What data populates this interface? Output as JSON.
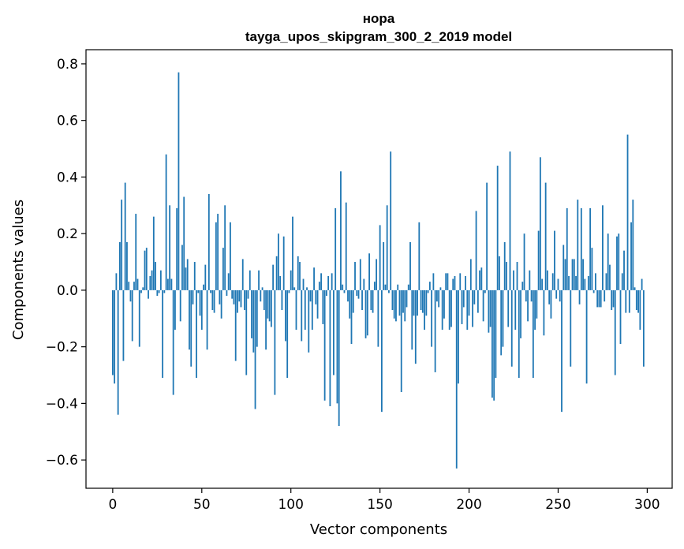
{
  "chart_data": {
    "type": "bar",
    "title": "нора",
    "subtitle": "tayga_upos_skipgram_300_2_2019 model",
    "xlabel": "Vector components",
    "ylabel": "Components values",
    "xlim": [
      -15,
      314
    ],
    "ylim": [
      -0.7,
      0.85
    ],
    "xticks": [
      0,
      50,
      100,
      150,
      200,
      250,
      300
    ],
    "yticks": [
      0.8,
      0.6,
      0.4,
      0.2,
      0.0,
      -0.2,
      -0.4,
      -0.6
    ],
    "ytick_labels": [
      "0.8",
      "0.6",
      "0.4",
      "0.2",
      "0.0",
      "−0.2",
      "−0.4",
      "−0.6"
    ],
    "grid": false,
    "bar_color": "#1f77b4",
    "values": [
      -0.3,
      -0.33,
      0.06,
      -0.44,
      0.17,
      0.32,
      -0.25,
      0.38,
      0.17,
      0.03,
      -0.04,
      -0.18,
      0.03,
      0.27,
      0.04,
      -0.2,
      -0.01,
      0.01,
      0.14,
      0.15,
      -0.03,
      0.05,
      0.07,
      0.26,
      0.1,
      -0.02,
      -0.01,
      0.07,
      -0.31,
      -0.01,
      0.48,
      0.04,
      0.3,
      0.04,
      -0.37,
      -0.14,
      0.29,
      0.77,
      -0.11,
      0.16,
      0.33,
      0.08,
      0.11,
      -0.21,
      -0.27,
      -0.05,
      0.1,
      -0.31,
      -0.01,
      -0.09,
      -0.14,
      0.02,
      0.09,
      -0.21,
      0.34,
      -0.01,
      -0.07,
      -0.08,
      0.24,
      0.27,
      -0.05,
      -0.1,
      0.15,
      0.3,
      -0.02,
      0.06,
      0.24,
      -0.03,
      -0.05,
      -0.25,
      -0.08,
      -0.04,
      -0.06,
      0.11,
      -0.07,
      -0.3,
      -0.03,
      0.07,
      -0.17,
      -0.22,
      -0.42,
      -0.2,
      0.07,
      -0.04,
      0.01,
      -0.07,
      -0.21,
      -0.1,
      -0.11,
      -0.13,
      0.09,
      -0.37,
      0.12,
      0.2,
      0.05,
      -0.07,
      0.19,
      -0.18,
      -0.31,
      -0.01,
      0.07,
      0.26,
      0.01,
      -0.14,
      0.12,
      0.1,
      -0.18,
      0.04,
      -0.14,
      0.01,
      -0.22,
      -0.04,
      -0.14,
      0.08,
      -0.05,
      -0.1,
      0.03,
      0.06,
      -0.12,
      -0.39,
      -0.02,
      0.05,
      -0.41,
      0.06,
      -0.3,
      0.29,
      -0.4,
      -0.48,
      0.42,
      0.02,
      -0.01,
      0.31,
      -0.04,
      -0.1,
      -0.19,
      -0.08,
      0.1,
      -0.02,
      -0.03,
      0.11,
      -0.07,
      0.04,
      -0.17,
      -0.16,
      0.13,
      -0.07,
      -0.08,
      0.03,
      0.11,
      -0.2,
      0.23,
      -0.43,
      0.17,
      0.02,
      0.3,
      -0.01,
      0.49,
      -0.07,
      -0.1,
      -0.11,
      0.02,
      -0.09,
      -0.36,
      -0.08,
      -0.11,
      -0.06,
      0.02,
      0.17,
      -0.21,
      -0.09,
      -0.26,
      -0.09,
      0.24,
      -0.07,
      -0.08,
      -0.14,
      -0.09,
      -0.01,
      0.03,
      -0.2,
      0.06,
      -0.29,
      -0.04,
      -0.06,
      0.01,
      -0.14,
      -0.1,
      0.06,
      0.06,
      -0.14,
      -0.13,
      0.04,
      0.05,
      -0.63,
      -0.33,
      0.06,
      -0.12,
      -0.06,
      0.05,
      -0.14,
      -0.09,
      0.11,
      -0.13,
      -0.05,
      0.28,
      -0.08,
      0.07,
      0.08,
      -0.11,
      -0.01,
      0.38,
      -0.15,
      -0.13,
      -0.38,
      -0.39,
      -0.31,
      0.44,
      0.12,
      -0.23,
      -0.2,
      0.17,
      0.1,
      -0.13,
      0.49,
      -0.27,
      0.07,
      -0.14,
      0.1,
      -0.31,
      -0.17,
      0.03,
      0.2,
      -0.04,
      -0.11,
      0.07,
      -0.04,
      -0.31,
      -0.14,
      -0.1,
      0.21,
      0.47,
      0.04,
      -0.16,
      0.38,
      0.07,
      -0.05,
      -0.1,
      0.06,
      0.21,
      -0.03,
      0.04,
      -0.04,
      -0.43,
      0.16,
      0.11,
      0.29,
      0.05,
      -0.27,
      0.11,
      0.11,
      0.05,
      0.32,
      -0.05,
      0.29,
      0.11,
      0.04,
      -0.33,
      0.05,
      0.29,
      0.15,
      -0.01,
      0.06,
      -0.06,
      -0.06,
      -0.06,
      0.3,
      -0.04,
      0.06,
      0.2,
      0.09,
      -0.07,
      -0.06,
      -0.3,
      0.19,
      0.2,
      -0.19,
      0.06,
      0.14,
      -0.08,
      0.55,
      -0.08,
      0.24,
      0.32,
      0.01,
      -0.07,
      -0.08,
      -0.14,
      0.04,
      -0.27
    ]
  }
}
